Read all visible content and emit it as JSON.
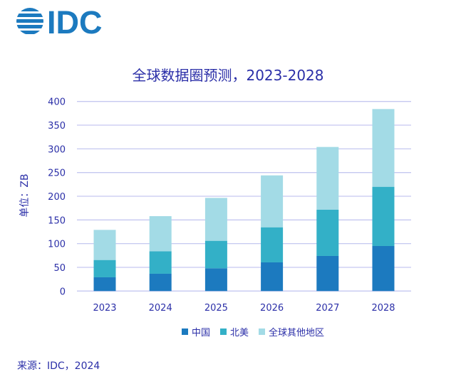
{
  "logo_text": "IDC",
  "source": "来源：IDC，2024",
  "colors": {
    "中国": "#1c7abf",
    "北美": "#33b0c7",
    "全球其他地区": "#a3dbe6",
    "text": "#2b2fa8",
    "grid": "#c5c8f0"
  },
  "chart_data": {
    "type": "bar",
    "stacked": true,
    "title": "全球数据圈预测，2023-2028",
    "ylabel": "单位：ZB",
    "xlabel": "",
    "ylim": [
      0,
      400
    ],
    "yticks": [
      0,
      50,
      100,
      150,
      200,
      250,
      300,
      350,
      400
    ],
    "categories": [
      "2023",
      "2024",
      "2025",
      "2026",
      "2027",
      "2028"
    ],
    "series": [
      {
        "name": "中国",
        "values": [
          29,
          36.5,
          48,
          60.5,
          74,
          95
        ]
      },
      {
        "name": "北美",
        "values": [
          36.5,
          47.5,
          58,
          74,
          97.5,
          125
        ]
      },
      {
        "name": "全球其他地区",
        "values": [
          63.5,
          74,
          90.5,
          109.5,
          132.5,
          164
        ]
      }
    ],
    "grid": true,
    "legend": "bottom"
  }
}
